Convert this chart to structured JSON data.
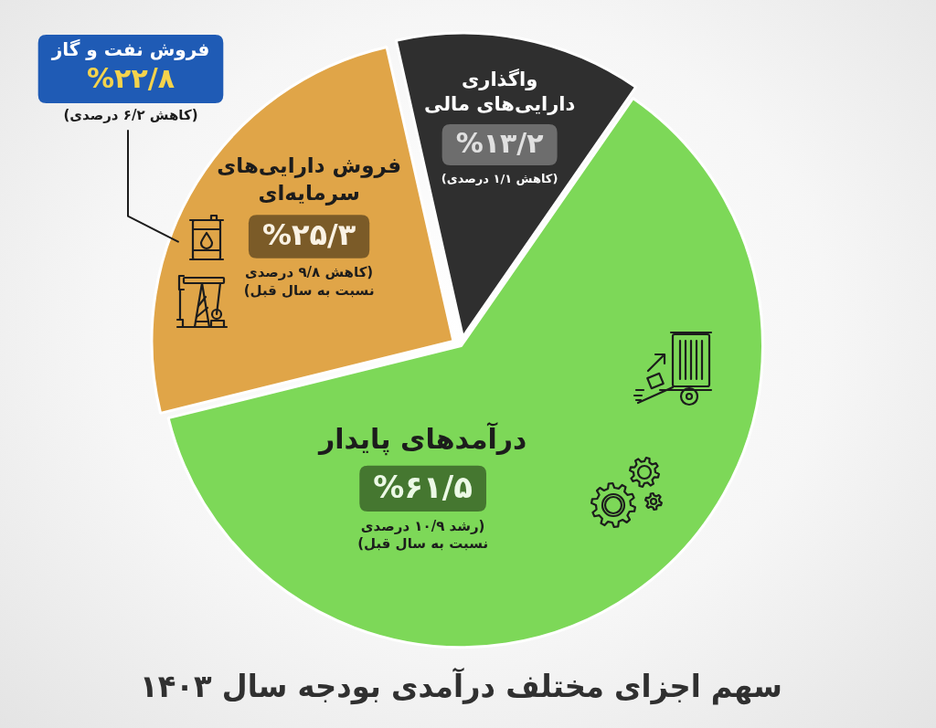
{
  "chart_data": {
    "type": "pie",
    "title": "سهم اجزای مختلف درآمدی بودجه سال ۱۴۰۳",
    "categories": [
      "درآمدهای پایدار",
      "فروش دارایی‌های\nسرمایه‌ای",
      "واگذاری\nدارایی‌های مالی"
    ],
    "values": [
      61.5,
      25.3,
      13.2
    ],
    "colors": [
      "#7dd858",
      "#e0a548",
      "#2f2f2f"
    ],
    "value_labels": [
      "%۶۱/۵",
      "%۲۵/۳",
      "%۱۳/۲"
    ],
    "annotations": [
      "(رشد ۱۰/۹ درصدی\nنسبت به سال قبل)",
      "(کاهش ۹/۸ درصدی\nنسبت به سال قبل)",
      "(کاهش ۱/۱ درصدی)",
      "فروش نفت و گاز",
      "%۲۲/۸",
      "(کاهش ۶/۲ درصدی)"
    ]
  }
}
